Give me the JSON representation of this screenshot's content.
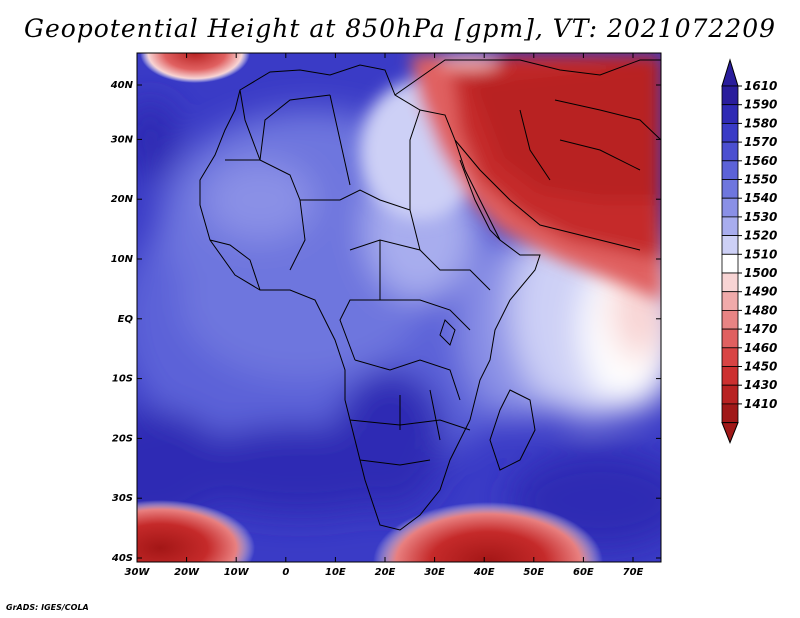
{
  "title": "Geopotential Height at 850hPa [gpm], VT: 2021072209",
  "footer": "GrADS: IGES/COLA",
  "map": {
    "region": "Africa and Middle East",
    "lon_range": [
      -30,
      76
    ],
    "lat_range": [
      -40,
      45
    ],
    "x_tick_labels": [
      "30W",
      "20W",
      "10W",
      "0",
      "10E",
      "20E",
      "30E",
      "40E",
      "50E",
      "60E",
      "70E"
    ],
    "y_tick_labels": [
      "40N",
      "30N",
      "20N",
      "10N",
      "EQ",
      "10S",
      "20S",
      "30S",
      "40S"
    ]
  },
  "colorbar": {
    "labels": [
      "1610",
      "1590",
      "1580",
      "1570",
      "1560",
      "1550",
      "1540",
      "1530",
      "1520",
      "1510",
      "1500",
      "1490",
      "1480",
      "1470",
      "1460",
      "1450",
      "1430",
      "1410"
    ],
    "colors": [
      "#2a1d9c",
      "#2f2ab4",
      "#3a3bc6",
      "#4b4fd0",
      "#5c62d8",
      "#6e76de",
      "#8a90e6",
      "#a8adee",
      "#cdd0f6",
      "#ffffff",
      "#f8d4d4",
      "#f0aaaa",
      "#e88484",
      "#e06060",
      "#d84444",
      "#cc3030",
      "#b82222",
      "#a01818"
    ]
  }
}
